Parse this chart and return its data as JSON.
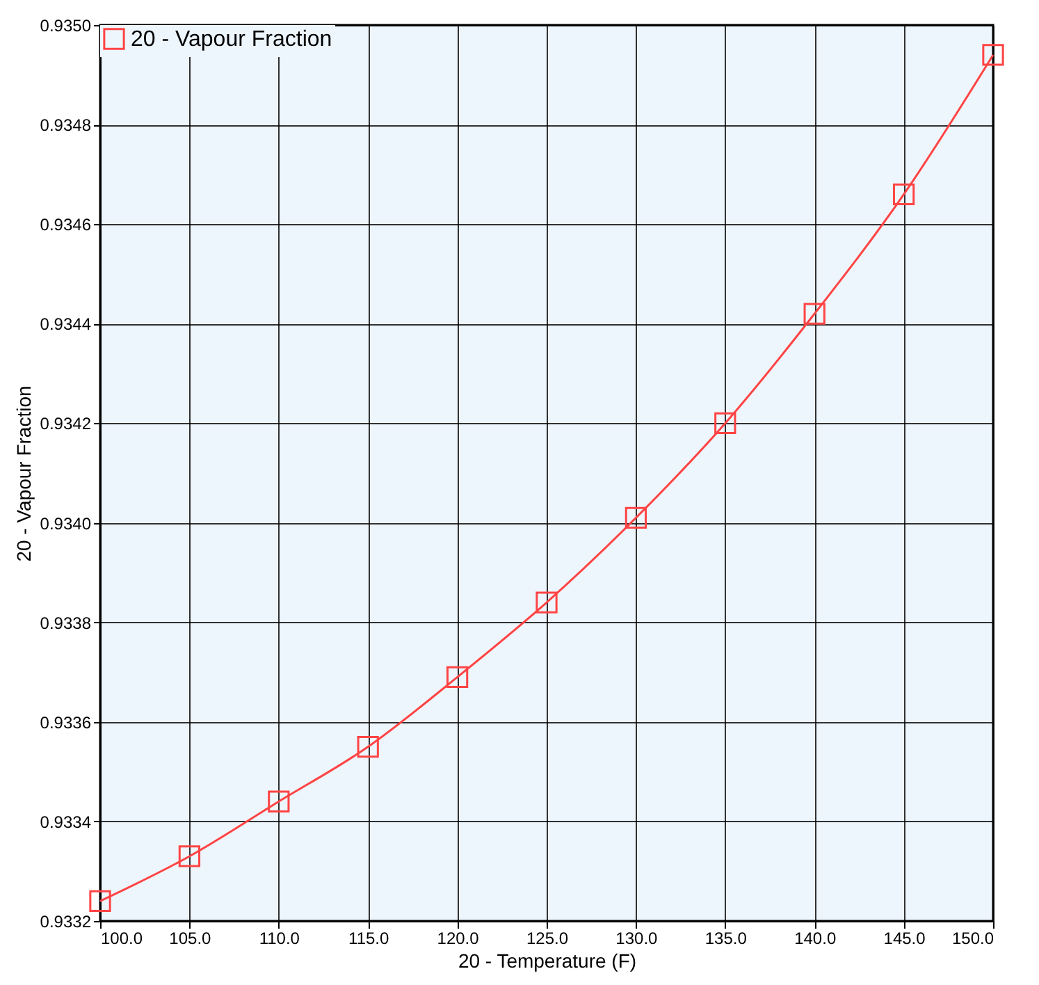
{
  "chart_data": {
    "type": "line",
    "xlabel": "20 - Temperature (F)",
    "ylabel": "20 - Vapour Fraction",
    "x": [
      100,
      105,
      110,
      115,
      120,
      125,
      130,
      135,
      140,
      145,
      150
    ],
    "series": [
      {
        "name": "20 - Vapour Fraction",
        "color": "#ff4444",
        "values": [
          0.93324,
          0.93333,
          0.93344,
          0.93355,
          0.93369,
          0.93384,
          0.93401,
          0.9342,
          0.93442,
          0.93466,
          0.93494
        ]
      }
    ],
    "xlim": [
      100,
      150
    ],
    "xticks": [
      {
        "value": 100,
        "label": "100.0"
      },
      {
        "value": 105,
        "label": "105.0"
      },
      {
        "value": 110,
        "label": "110.0"
      },
      {
        "value": 115,
        "label": "115.0"
      },
      {
        "value": 120,
        "label": "120.0"
      },
      {
        "value": 125,
        "label": "125.0"
      },
      {
        "value": 130,
        "label": "130.0"
      },
      {
        "value": 135,
        "label": "135.0"
      },
      {
        "value": 140,
        "label": "140.0"
      },
      {
        "value": 145,
        "label": "145.0"
      },
      {
        "value": 150,
        "label": "150.0"
      }
    ],
    "ylim": [
      0.9332,
      0.935
    ],
    "yticks": [
      0.9332,
      0.9334,
      0.9336,
      0.9338,
      {
        "value": 0.934,
        "label": "0.9340"
      },
      0.9342,
      0.9344,
      0.9346,
      0.9348,
      {
        "value": 0.935,
        "label": "0.9350"
      }
    ],
    "grid": true,
    "legend": "top left",
    "marker": "square",
    "line_style": "solid"
  }
}
